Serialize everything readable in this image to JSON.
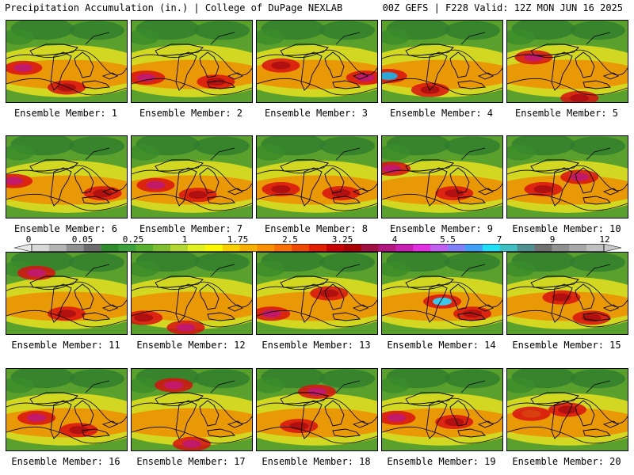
{
  "header": {
    "left": "Precipitation Accumulation (in.) | College of DuPage NEXLAB",
    "right": "00Z GEFS | F228 Valid: 12Z MON JUN 16 2025"
  },
  "members": [
    {
      "label": "Ensemble Member: 1",
      "hi": [
        [
          0.14,
          0.58,
          "#c21a6a"
        ],
        [
          0.5,
          0.82,
          "#b01010"
        ]
      ]
    },
    {
      "label": "Ensemble Member: 2",
      "hi": [
        [
          0.12,
          0.7,
          "#c21a6a"
        ],
        [
          0.7,
          0.75,
          "#b01010"
        ]
      ]
    },
    {
      "label": "Ensemble Member: 3",
      "hi": [
        [
          0.2,
          0.55,
          "#b01010"
        ],
        [
          0.9,
          0.7,
          "#c21a6a"
        ]
      ]
    },
    {
      "label": "Ensemble Member: 4",
      "hi": [
        [
          0.05,
          0.68,
          "#2aa8d8"
        ],
        [
          0.4,
          0.85,
          "#b01010"
        ]
      ]
    },
    {
      "label": "Ensemble Member: 5",
      "hi": [
        [
          0.22,
          0.45,
          "#c21a6a"
        ],
        [
          0.6,
          0.95,
          "#b01010"
        ]
      ]
    },
    {
      "label": "Ensemble Member: 6",
      "hi": [
        [
          0.06,
          0.55,
          "#c21a6a"
        ],
        [
          0.8,
          0.7,
          "#b01010"
        ]
      ]
    },
    {
      "label": "Ensemble Member: 7",
      "hi": [
        [
          0.2,
          0.6,
          "#c21a6a"
        ],
        [
          0.55,
          0.72,
          "#b01010"
        ]
      ]
    },
    {
      "label": "Ensemble Member: 8",
      "hi": [
        [
          0.2,
          0.65,
          "#b01010"
        ],
        [
          0.7,
          0.7,
          "#b01010"
        ]
      ]
    },
    {
      "label": "Ensemble Member: 9",
      "hi": [
        [
          0.08,
          0.4,
          "#c21a6a"
        ],
        [
          0.6,
          0.7,
          "#b01010"
        ]
      ]
    },
    {
      "label": "Ensemble Member: 10",
      "hi": [
        [
          0.6,
          0.5,
          "#c21a6a"
        ],
        [
          0.3,
          0.65,
          "#b01010"
        ]
      ]
    },
    {
      "label": "Ensemble Member: 11",
      "hi": [
        [
          0.25,
          0.25,
          "#c21a6a"
        ],
        [
          0.5,
          0.75,
          "#b01010"
        ]
      ]
    },
    {
      "label": "Ensemble Member: 12",
      "hi": [
        [
          0.45,
          0.92,
          "#c21a6a"
        ],
        [
          0.1,
          0.8,
          "#b01010"
        ]
      ]
    },
    {
      "label": "Ensemble Member: 13",
      "hi": [
        [
          0.12,
          0.75,
          "#c21a6a"
        ],
        [
          0.6,
          0.5,
          "#b01010"
        ]
      ]
    },
    {
      "label": "Ensemble Member: 14",
      "hi": [
        [
          0.5,
          0.6,
          "#3cc8e8"
        ],
        [
          0.75,
          0.75,
          "#b01010"
        ]
      ]
    },
    {
      "label": "Ensemble Member: 15",
      "hi": [
        [
          0.45,
          0.55,
          "#b01010"
        ],
        [
          0.7,
          0.8,
          "#b01010"
        ]
      ]
    },
    {
      "label": "Ensemble Member: 16",
      "hi": [
        [
          0.25,
          0.6,
          "#c21a6a"
        ],
        [
          0.6,
          0.75,
          "#b01010"
        ]
      ]
    },
    {
      "label": "Ensemble Member: 17",
      "hi": [
        [
          0.35,
          0.2,
          "#c21a6a"
        ],
        [
          0.5,
          0.92,
          "#c21a6a"
        ]
      ]
    },
    {
      "label": "Ensemble Member: 18",
      "hi": [
        [
          0.5,
          0.28,
          "#c21a6a"
        ],
        [
          0.35,
          0.7,
          "#b01010"
        ]
      ]
    },
    {
      "label": "Ensemble Member: 19",
      "hi": [
        [
          0.12,
          0.6,
          "#c21a6a"
        ],
        [
          0.6,
          0.65,
          "#b01010"
        ]
      ]
    },
    {
      "label": "Ensemble Member: 20",
      "hi": [
        [
          0.5,
          0.5,
          "#b01010"
        ],
        [
          0.2,
          0.55,
          "#d84010"
        ]
      ]
    }
  ],
  "colorbar": {
    "ticks": [
      "0",
      "0.05",
      "0.25",
      "1",
      "1.75",
      "2.5",
      "3.25",
      "4",
      "5.5",
      "7",
      "9",
      "12"
    ],
    "colors": [
      "#d8d8d8",
      "#b4b4b4",
      "#909090",
      "#6c6c6c",
      "#2e8b2e",
      "#3ca03c",
      "#58b030",
      "#80c030",
      "#b0d830",
      "#e0f020",
      "#f8f800",
      "#f8d000",
      "#f8b000",
      "#f89000",
      "#f87000",
      "#f04a00",
      "#e02000",
      "#c80000",
      "#a80000",
      "#a01040",
      "#b01880",
      "#c820b0",
      "#e030e0",
      "#c060f0",
      "#8080f8",
      "#40a0f8",
      "#20e0f8",
      "#40c0c0",
      "#509090",
      "#707070",
      "#909090",
      "#a8a8a8",
      "#c0c0c0"
    ]
  }
}
